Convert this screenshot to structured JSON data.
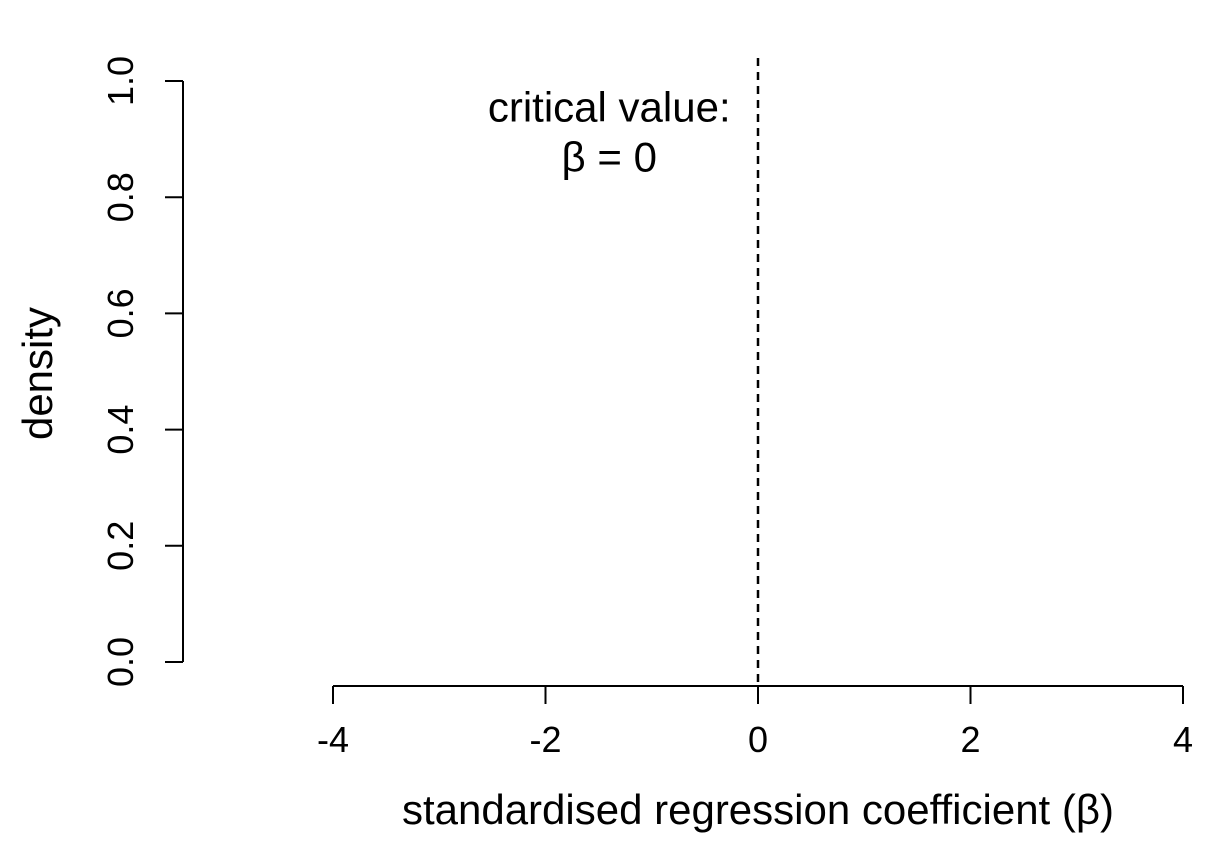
{
  "chart_data": {
    "type": "line",
    "title": "",
    "xlabel": "standardised regression coefficient (β)",
    "ylabel": "density",
    "xlim": [
      -4,
      4
    ],
    "ylim": [
      0,
      1
    ],
    "x_ticks": [
      -4,
      -2,
      0,
      2,
      4
    ],
    "y_ticks": [
      0.0,
      0.2,
      0.4,
      0.6,
      0.8,
      1.0
    ],
    "x_tick_labels": [
      "-4",
      "-2",
      "0",
      "2",
      "4"
    ],
    "y_tick_labels": [
      "0.0",
      "0.2",
      "0.4",
      "0.6",
      "0.8",
      "1.0"
    ],
    "grid": false,
    "series": [],
    "reference_line": {
      "x": 0,
      "style": "dashed"
    },
    "annotation": {
      "lines": [
        "critical value:",
        "β = 0"
      ],
      "x": -1.4,
      "y": 0.87
    }
  }
}
